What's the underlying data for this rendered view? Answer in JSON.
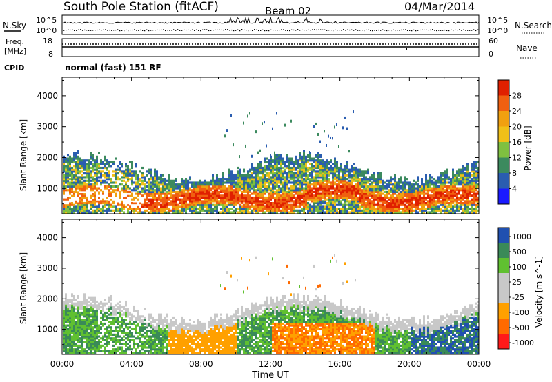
{
  "header": {
    "station": "South Pole Station (fitACF)",
    "beam": "Beam 02",
    "date": "04/Mar/2014"
  },
  "noise_panel": {
    "left_label": "N.Sky",
    "right_label": "N.Search",
    "left_ticks": [
      "10^5",
      "10^0"
    ],
    "right_ticks": [
      "10^5",
      "10^0"
    ]
  },
  "freq_panel": {
    "left_label_1": "Freq.",
    "left_label_2": "[MHz]",
    "right_label": "Nave",
    "left_ticks": [
      "18",
      "8"
    ],
    "right_ticks": [
      "60",
      "0"
    ]
  },
  "cpid": {
    "label": "CPID",
    "value": "normal (fast) 151 RF"
  },
  "colors": {
    "power_scale": [
      "#1a1aff",
      "#2a5db0",
      "#3c8a5e",
      "#7fc040",
      "#f0c018",
      "#f0a010",
      "#f06010",
      "#e02000"
    ],
    "velocity_scale": [
      "#ff1a1a",
      "#ff6a00",
      "#ffa000",
      "#c8c8c8",
      "#c8c8c8",
      "#60c030",
      "#3a8a58",
      "#2050b0"
    ]
  },
  "chart_data": [
    {
      "type": "heatmap",
      "title": "",
      "xlabel": "",
      "ylabel": "Slant Range [km]",
      "x_ticks": [
        "00:00",
        "04:00",
        "08:00",
        "12:00",
        "16:00",
        "20:00",
        "00:00"
      ],
      "xlim_hours": [
        0,
        24
      ],
      "y_ticks": [
        1000,
        2000,
        3000,
        4000
      ],
      "ylim_km": [
        180,
        4600
      ],
      "colorbar": {
        "label": "Power [dB]",
        "ticks": [
          4,
          8,
          12,
          16,
          20,
          24,
          28
        ],
        "range": [
          0,
          30
        ]
      }
    },
    {
      "type": "heatmap",
      "title": "",
      "xlabel": "Time UT",
      "ylabel": "Slant Range [km]",
      "x_ticks": [
        "00:00",
        "04:00",
        "08:00",
        "12:00",
        "16:00",
        "20:00",
        "00:00"
      ],
      "xlim_hours": [
        0,
        24
      ],
      "y_ticks": [
        1000,
        2000,
        3000,
        4000
      ],
      "ylim_km": [
        180,
        4600
      ],
      "colorbar": {
        "label": "Velocity [m s^-1]",
        "ticks": [
          "1000",
          "500",
          "100",
          "25",
          "-25",
          "-100",
          "-500",
          "-1000"
        ]
      }
    }
  ]
}
